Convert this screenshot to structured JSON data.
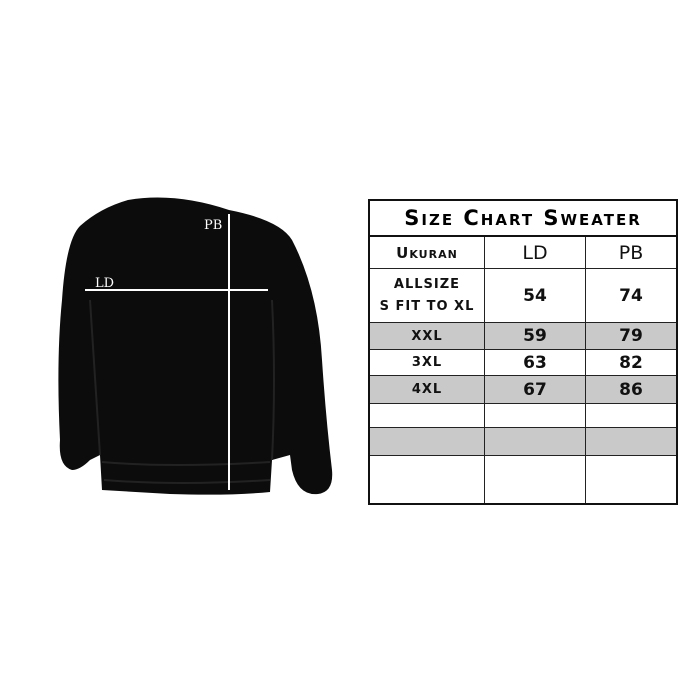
{
  "sweater": {
    "labels": {
      "pb": "PB",
      "ld": "LD"
    }
  },
  "table": {
    "title": "Size Chart Sweater",
    "header": [
      "Ukuran",
      "LD",
      "PB"
    ],
    "rows": [
      [
        [
          "ALLSIZE",
          "S FIT TO XL"
        ],
        54,
        74
      ],
      [
        "XXL",
        59,
        79
      ],
      [
        "3XL",
        63,
        82
      ],
      [
        "4XL",
        67,
        86
      ]
    ]
  }
}
